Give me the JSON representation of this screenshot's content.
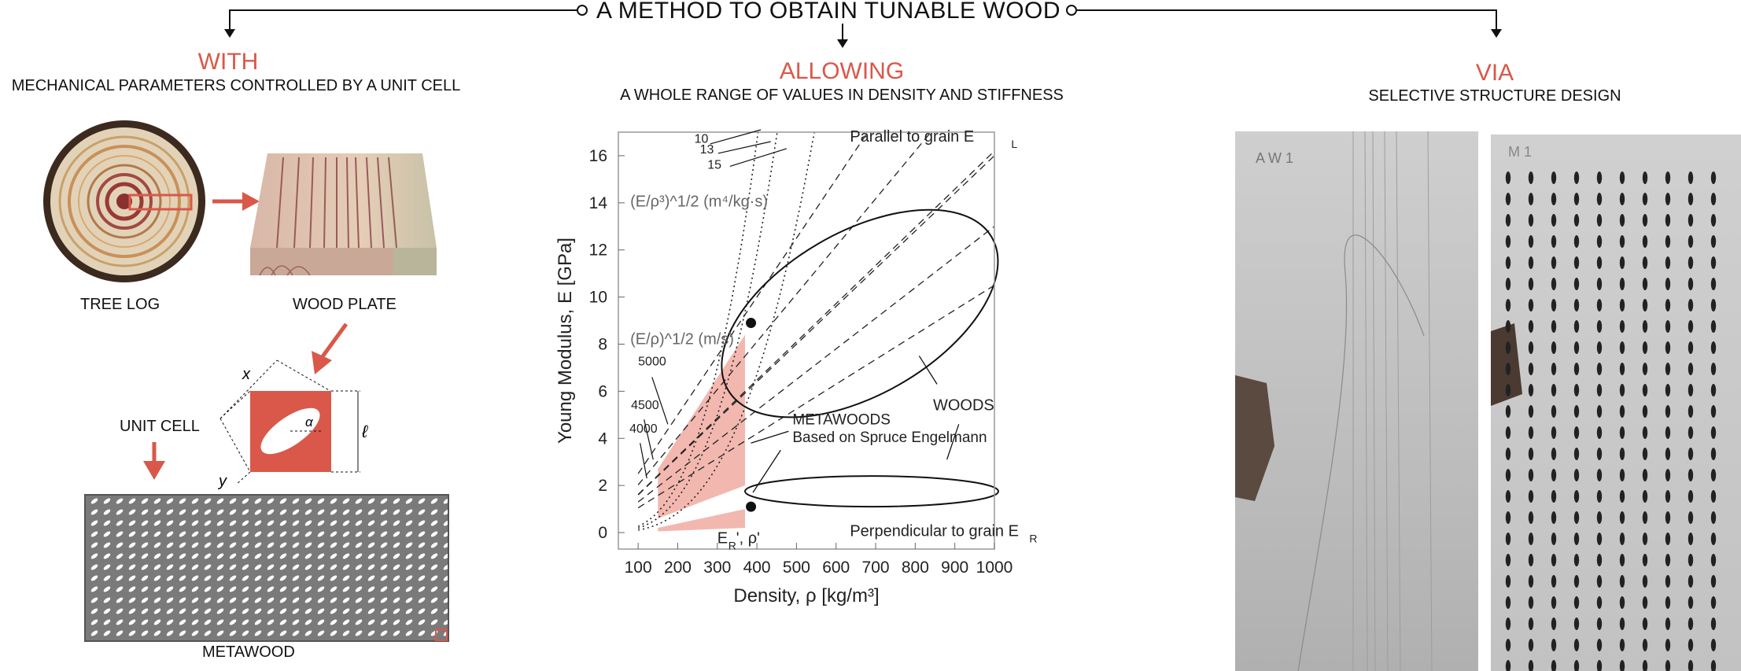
{
  "title": "A METHOD TO OBTAIN  TUNABLE WOOD",
  "sections": {
    "with": {
      "heading": "WITH",
      "subtitle": "MECHANICAL PARAMETERS CONTROLLED BY A UNIT CELL"
    },
    "allowing": {
      "heading": "ALLOWING",
      "subtitle": "A WHOLE RANGE OF VALUES IN DENSITY AND STIFFNESS"
    },
    "via": {
      "heading": "VIA",
      "subtitle": "SELECTIVE STRUCTURE DESIGN"
    }
  },
  "left_panel": {
    "tree_log_label": "TREE LOG",
    "wood_plate_label": "WOOD PLATE",
    "unit_cell_label": "UNIT CELL",
    "metawood_label": "METAWOOD",
    "dim_x": "x",
    "dim_y": "y",
    "dim_l": "ℓ",
    "angle": "α"
  },
  "right_panel": {
    "photo1_marking": "A W 1",
    "photo2_marking": "M 1"
  },
  "colors": {
    "accent_red": "#d9584a",
    "shade_pink": "#f2b8b0",
    "ink": "#111111"
  },
  "chart_data": {
    "type": "line",
    "xlabel": "Density, ρ [kg/m³]",
    "ylabel": "Young Modulus, E [GPa]",
    "xlim": [
      50,
      1000
    ],
    "ylim": [
      -0.7,
      17
    ],
    "xticks": [
      100,
      200,
      300,
      400,
      500,
      600,
      700,
      800,
      900,
      1000
    ],
    "yticks": [
      0,
      2,
      4,
      6,
      8,
      10,
      12,
      14,
      16
    ],
    "annotations": {
      "specific_modulus_label": "(E/ρ)^1/2 (m/s)",
      "dashed_series": [
        "4000",
        "4500",
        "5000"
      ],
      "dotted_label": "(E/ρ³)^1/2 (m⁴/kg·s)",
      "dotted_series": [
        "10",
        "13",
        "15"
      ],
      "parallel": "Parallel to grain E",
      "parallel_sub": "L",
      "perpendicular": "Perpendicular to grain E",
      "perpendicular_sub": "R",
      "woods": "WOODS",
      "metawoods_1": "METAWOODS",
      "metawoods_2": "Based on Spruce Engelmann",
      "er_rho": "E",
      "er_rho_sub": "R",
      "er_rho_tail": "', ρ'"
    },
    "ellipses": [
      {
        "name": "Parallel to grain E_L",
        "center": [
          660,
          9.3
        ],
        "semi_axes": [
          385,
          3.45
        ],
        "rotation_deg": -30
      },
      {
        "name": "Perpendicular to grain E_R",
        "center": [
          690,
          1.75
        ],
        "semi_axes": [
          320,
          0.65
        ],
        "rotation_deg": 0
      }
    ],
    "points": [
      {
        "x": 385,
        "y": 8.9
      },
      {
        "x": 385,
        "y": 1.1
      }
    ],
    "shaded_regions": [
      {
        "x": [
          150,
          370
        ],
        "y_top": [
          2.7,
          8.4
        ],
        "y_bottom": [
          0.6,
          2.0
        ]
      },
      {
        "x": [
          150,
          370
        ],
        "y_top": [
          0.2,
          1.0
        ],
        "y_bottom": [
          0.05,
          0.2
        ]
      }
    ]
  }
}
